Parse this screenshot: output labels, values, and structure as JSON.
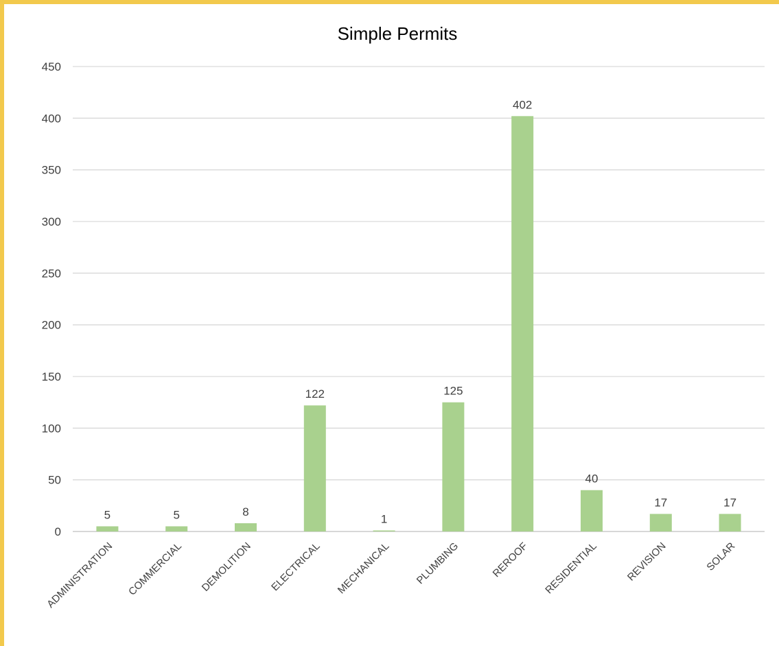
{
  "chart_data": {
    "type": "bar",
    "title": "Simple Permits",
    "xlabel": "",
    "ylabel": "",
    "categories": [
      "ADMINISTRATION",
      "COMMERCIAL",
      "DEMOLITION",
      "ELECTRICAL",
      "MECHANICAL",
      "PLUMBING",
      "REROOF",
      "RESIDENTIAL",
      "REVISION",
      "SOLAR"
    ],
    "values": [
      5,
      5,
      8,
      122,
      1,
      125,
      402,
      40,
      17,
      17
    ],
    "ylim": [
      0,
      450
    ],
    "yticks": [
      0,
      50,
      100,
      150,
      200,
      250,
      300,
      350,
      400,
      450
    ],
    "grid": true,
    "legend": "none",
    "bar_color": "#a9d18e",
    "data_labels": true
  }
}
